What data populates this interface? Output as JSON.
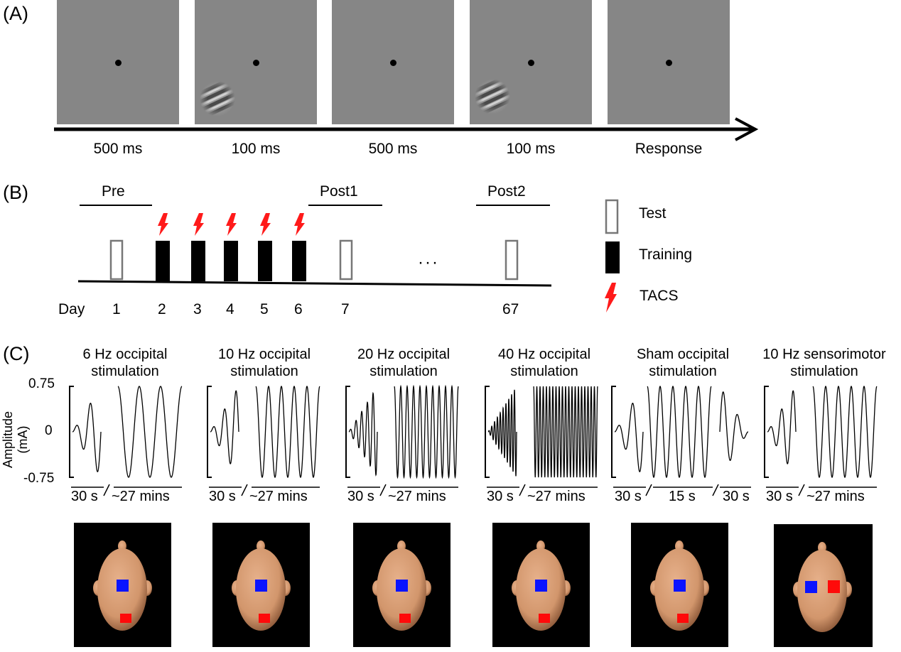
{
  "panelA": {
    "label": "(A)",
    "frames": [
      {
        "label": "500 ms",
        "stimulus": false
      },
      {
        "label": "100 ms",
        "stimulus": true
      },
      {
        "label": "500 ms",
        "stimulus": false
      },
      {
        "label": "100 ms",
        "stimulus": true
      },
      {
        "label": "Response",
        "stimulus": false
      }
    ]
  },
  "panelB": {
    "label": "(B)",
    "phases": {
      "pre": "Pre",
      "post1": "Post1",
      "post2": "Post2"
    },
    "day_word": "Day",
    "ellipsis": "···",
    "days": [
      {
        "day": "1",
        "type": "test"
      },
      {
        "day": "2",
        "type": "training"
      },
      {
        "day": "3",
        "type": "training"
      },
      {
        "day": "4",
        "type": "training"
      },
      {
        "day": "5",
        "type": "training"
      },
      {
        "day": "6",
        "type": "training"
      },
      {
        "day": "7",
        "type": "test"
      },
      {
        "day": "67",
        "type": "test"
      }
    ],
    "legend": {
      "test": "Test",
      "training": "Training",
      "tacs": "TACS"
    }
  },
  "panelC": {
    "label": "(C)",
    "ylabel": "Amplitude (mA)",
    "yticks": [
      "0.75",
      "0",
      "-0.75"
    ],
    "conditions": [
      {
        "title1": "6 Hz occipital",
        "title2": "stimulation",
        "segments": [
          "30 s",
          "~27 mins"
        ],
        "ramp_cycles": 2,
        "main_cycles": 3,
        "montage": "occipital"
      },
      {
        "title1": "10 Hz occipital",
        "title2": "stimulation",
        "segments": [
          "30 s",
          "~27 mins"
        ],
        "ramp_cycles": 2.5,
        "main_cycles": 5,
        "montage": "occipital"
      },
      {
        "title1": "20 Hz occipital",
        "title2": "stimulation",
        "segments": [
          "30 s",
          "~27 mins"
        ],
        "ramp_cycles": 5,
        "main_cycles": 10,
        "montage": "occipital"
      },
      {
        "title1": "40 Hz occipital",
        "title2": "stimulation",
        "segments": [
          "30 s",
          "~27 mins"
        ],
        "ramp_cycles": 10,
        "main_cycles": 20,
        "montage": "occipital"
      },
      {
        "title1": "Sham occipital",
        "title2": "stimulation",
        "segments": [
          "30 s",
          "15 s",
          "30 s"
        ],
        "ramp_cycles": 2,
        "main_cycles": 5,
        "montage": "occipital"
      },
      {
        "title1": "10 Hz sensorimotor",
        "title2": "stimulation",
        "segments": [
          "30 s",
          "~27 mins"
        ],
        "ramp_cycles": 2.5,
        "main_cycles": 5,
        "montage": "sensorimotor"
      }
    ]
  },
  "colors": {
    "frame_gray": "#868686",
    "tacs_red": "#ff1a1a",
    "electrode_blue": "#0a14ff",
    "electrode_red": "#ff0a0a",
    "skin": "#d2966c"
  }
}
